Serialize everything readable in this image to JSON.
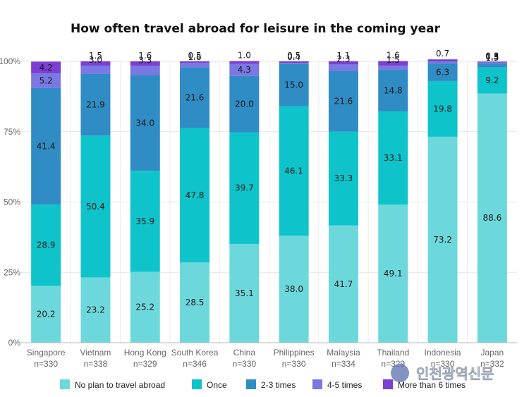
{
  "chart_data": {
    "type": "bar",
    "stacked": true,
    "title": "How often travel abroad for leisure in the coming year",
    "categories": [
      "Singapore",
      "Vietnam",
      "Hong Kong",
      "South Korea",
      "China",
      "Philippines",
      "Malaysia",
      "Thailand",
      "Indonesia",
      "Japan"
    ],
    "sample_sizes": [
      "n=330",
      "n=338",
      "n=329",
      "n=346",
      "n=330",
      "n=330",
      "n=334",
      "n=329",
      "n=330",
      "n=332"
    ],
    "yticks": [
      "0%",
      "25%",
      "50%",
      "75%",
      "100%"
    ],
    "ylim": [
      0,
      100
    ],
    "grid": true,
    "legend_position": "bottom",
    "series": [
      {
        "name": "No plan to travel abroad",
        "color": "#6dd8dc",
        "values": [
          20.2,
          23.2,
          25.2,
          28.5,
          35.1,
          38.0,
          41.7,
          49.1,
          73.2,
          88.6
        ]
      },
      {
        "name": "Once",
        "color": "#0ec4ca",
        "values": [
          28.9,
          50.4,
          35.9,
          47.8,
          39.7,
          46.1,
          33.3,
          33.1,
          19.8,
          9.2
        ]
      },
      {
        "name": "2-3 times",
        "color": "#2f8cc4",
        "values": [
          41.4,
          21.9,
          34.0,
          21.6,
          20.0,
          15.0,
          21.6,
          14.8,
          6.3,
          1.5
        ]
      },
      {
        "name": "4-5 times",
        "color": "#7a78e2",
        "values": [
          5.2,
          3.0,
          3.3,
          1.6,
          4.3,
          0.4,
          2.3,
          1.5,
          0.7,
          0.3
        ]
      },
      {
        "name": "More than 6 times",
        "color": "#7b3fd3",
        "values": [
          4.2,
          1.5,
          1.6,
          0.5,
          1.0,
          0.5,
          1.1,
          1.6,
          0.7,
          0.3
        ]
      }
    ],
    "labels": [
      [
        "20.2",
        "23.2",
        "25.2",
        "28.5",
        "35.1",
        "38.0",
        "41.7",
        "49.1",
        "73.2",
        "88.6"
      ],
      [
        "28.9",
        "50.4",
        "35.9",
        "47.8",
        "39.7",
        "46.1",
        "33.3",
        "33.1",
        "19.8",
        "9.2"
      ],
      [
        "41.4",
        "21.9",
        "34.0",
        "21.6",
        "20.0",
        "15.0",
        "21.6",
        "14.8",
        "6.3",
        "1.5"
      ],
      [
        "5.2",
        "3.0",
        "3.3",
        "1.6",
        "4.3",
        "0.4",
        "2.3",
        "1.5",
        "",
        "0.3"
      ],
      [
        "4.2",
        "1.5",
        "1.6",
        "0.5",
        "1.0",
        "0.5",
        "1.1",
        "1.6",
        "0.7",
        "0.3"
      ]
    ]
  },
  "watermark": {
    "text": "인천광역신문"
  }
}
